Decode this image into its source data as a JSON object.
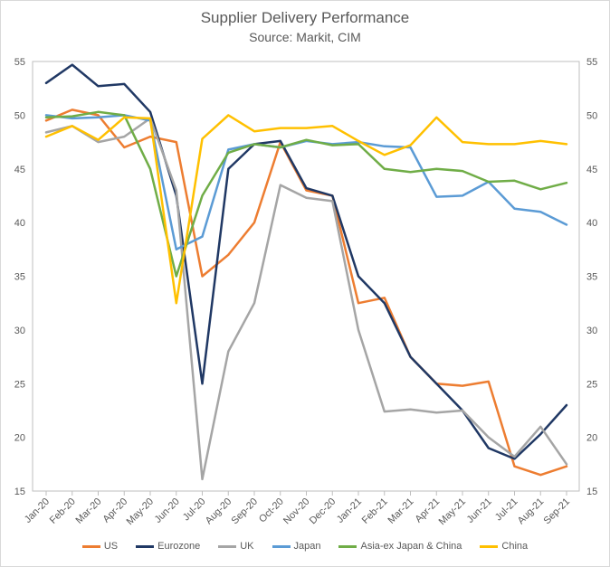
{
  "chart_data": {
    "type": "line",
    "title": "Supplier Delivery Performance",
    "subtitle": "Source: Markit, CIM",
    "ylim": [
      15,
      55
    ],
    "yticks": [
      15,
      20,
      25,
      30,
      35,
      40,
      45,
      50,
      55
    ],
    "legend_position": "bottom",
    "grid": false,
    "x": [
      "Jan-20",
      "Feb-20",
      "Mar-20",
      "Apr-20",
      "May-20",
      "Jun-20",
      "Jul-20",
      "Aug-20",
      "Sep-20",
      "Oct-20",
      "Nov-20",
      "Dec-20",
      "Jan-21",
      "Feb-21",
      "Mar-21",
      "Apr-21",
      "May-21",
      "Jun-21",
      "Jul-21",
      "Aug-21",
      "Sep-21"
    ],
    "series": [
      {
        "name": "US",
        "color": "#ED7D31",
        "values": [
          49.5,
          50.5,
          50.0,
          47.0,
          48.0,
          47.5,
          35.0,
          37.0,
          40.0,
          47.5,
          43.0,
          42.5,
          32.5,
          33.0,
          27.5,
          25.0,
          24.8,
          25.2,
          17.3,
          16.5,
          17.3
        ]
      },
      {
        "name": "Eurozone",
        "color": "#203864",
        "values": [
          53.0,
          54.7,
          52.7,
          52.9,
          50.3,
          42.5,
          25.0,
          45.0,
          47.3,
          47.6,
          43.2,
          42.5,
          35.0,
          32.5,
          27.5,
          25.0,
          22.5,
          19.0,
          18.0,
          20.3,
          23.0
        ]
      },
      {
        "name": "UK",
        "color": "#A5A5A5",
        "values": [
          48.4,
          49.0,
          47.5,
          48.0,
          49.7,
          43.0,
          16.1,
          28.0,
          32.5,
          43.5,
          42.3,
          42.0,
          30.0,
          22.4,
          22.6,
          22.3,
          22.5,
          20.0,
          18.2,
          21.0,
          17.5
        ]
      },
      {
        "name": "Japan",
        "color": "#5B9BD5",
        "values": [
          50.0,
          49.7,
          49.8,
          50.0,
          49.5,
          37.5,
          38.7,
          46.8,
          47.3,
          47.0,
          47.6,
          47.3,
          47.5,
          47.1,
          47.0,
          42.4,
          42.5,
          43.8,
          41.3,
          41.0,
          39.8
        ]
      },
      {
        "name": "Asia-ex Japan & China",
        "color": "#70AD47",
        "values": [
          49.8,
          49.9,
          50.3,
          50.0,
          45.0,
          35.0,
          42.5,
          46.5,
          47.3,
          47.0,
          47.7,
          47.2,
          47.3,
          45.0,
          44.7,
          45.0,
          44.8,
          43.8,
          43.9,
          43.1,
          43.7
        ]
      },
      {
        "name": "China",
        "color": "#FFC000",
        "values": [
          48.0,
          49.0,
          47.7,
          49.8,
          49.7,
          32.5,
          47.8,
          50.0,
          48.5,
          48.8,
          48.8,
          49.0,
          47.6,
          46.3,
          47.2,
          49.8,
          47.5,
          47.3,
          47.3,
          47.6,
          47.3
        ]
      }
    ]
  }
}
